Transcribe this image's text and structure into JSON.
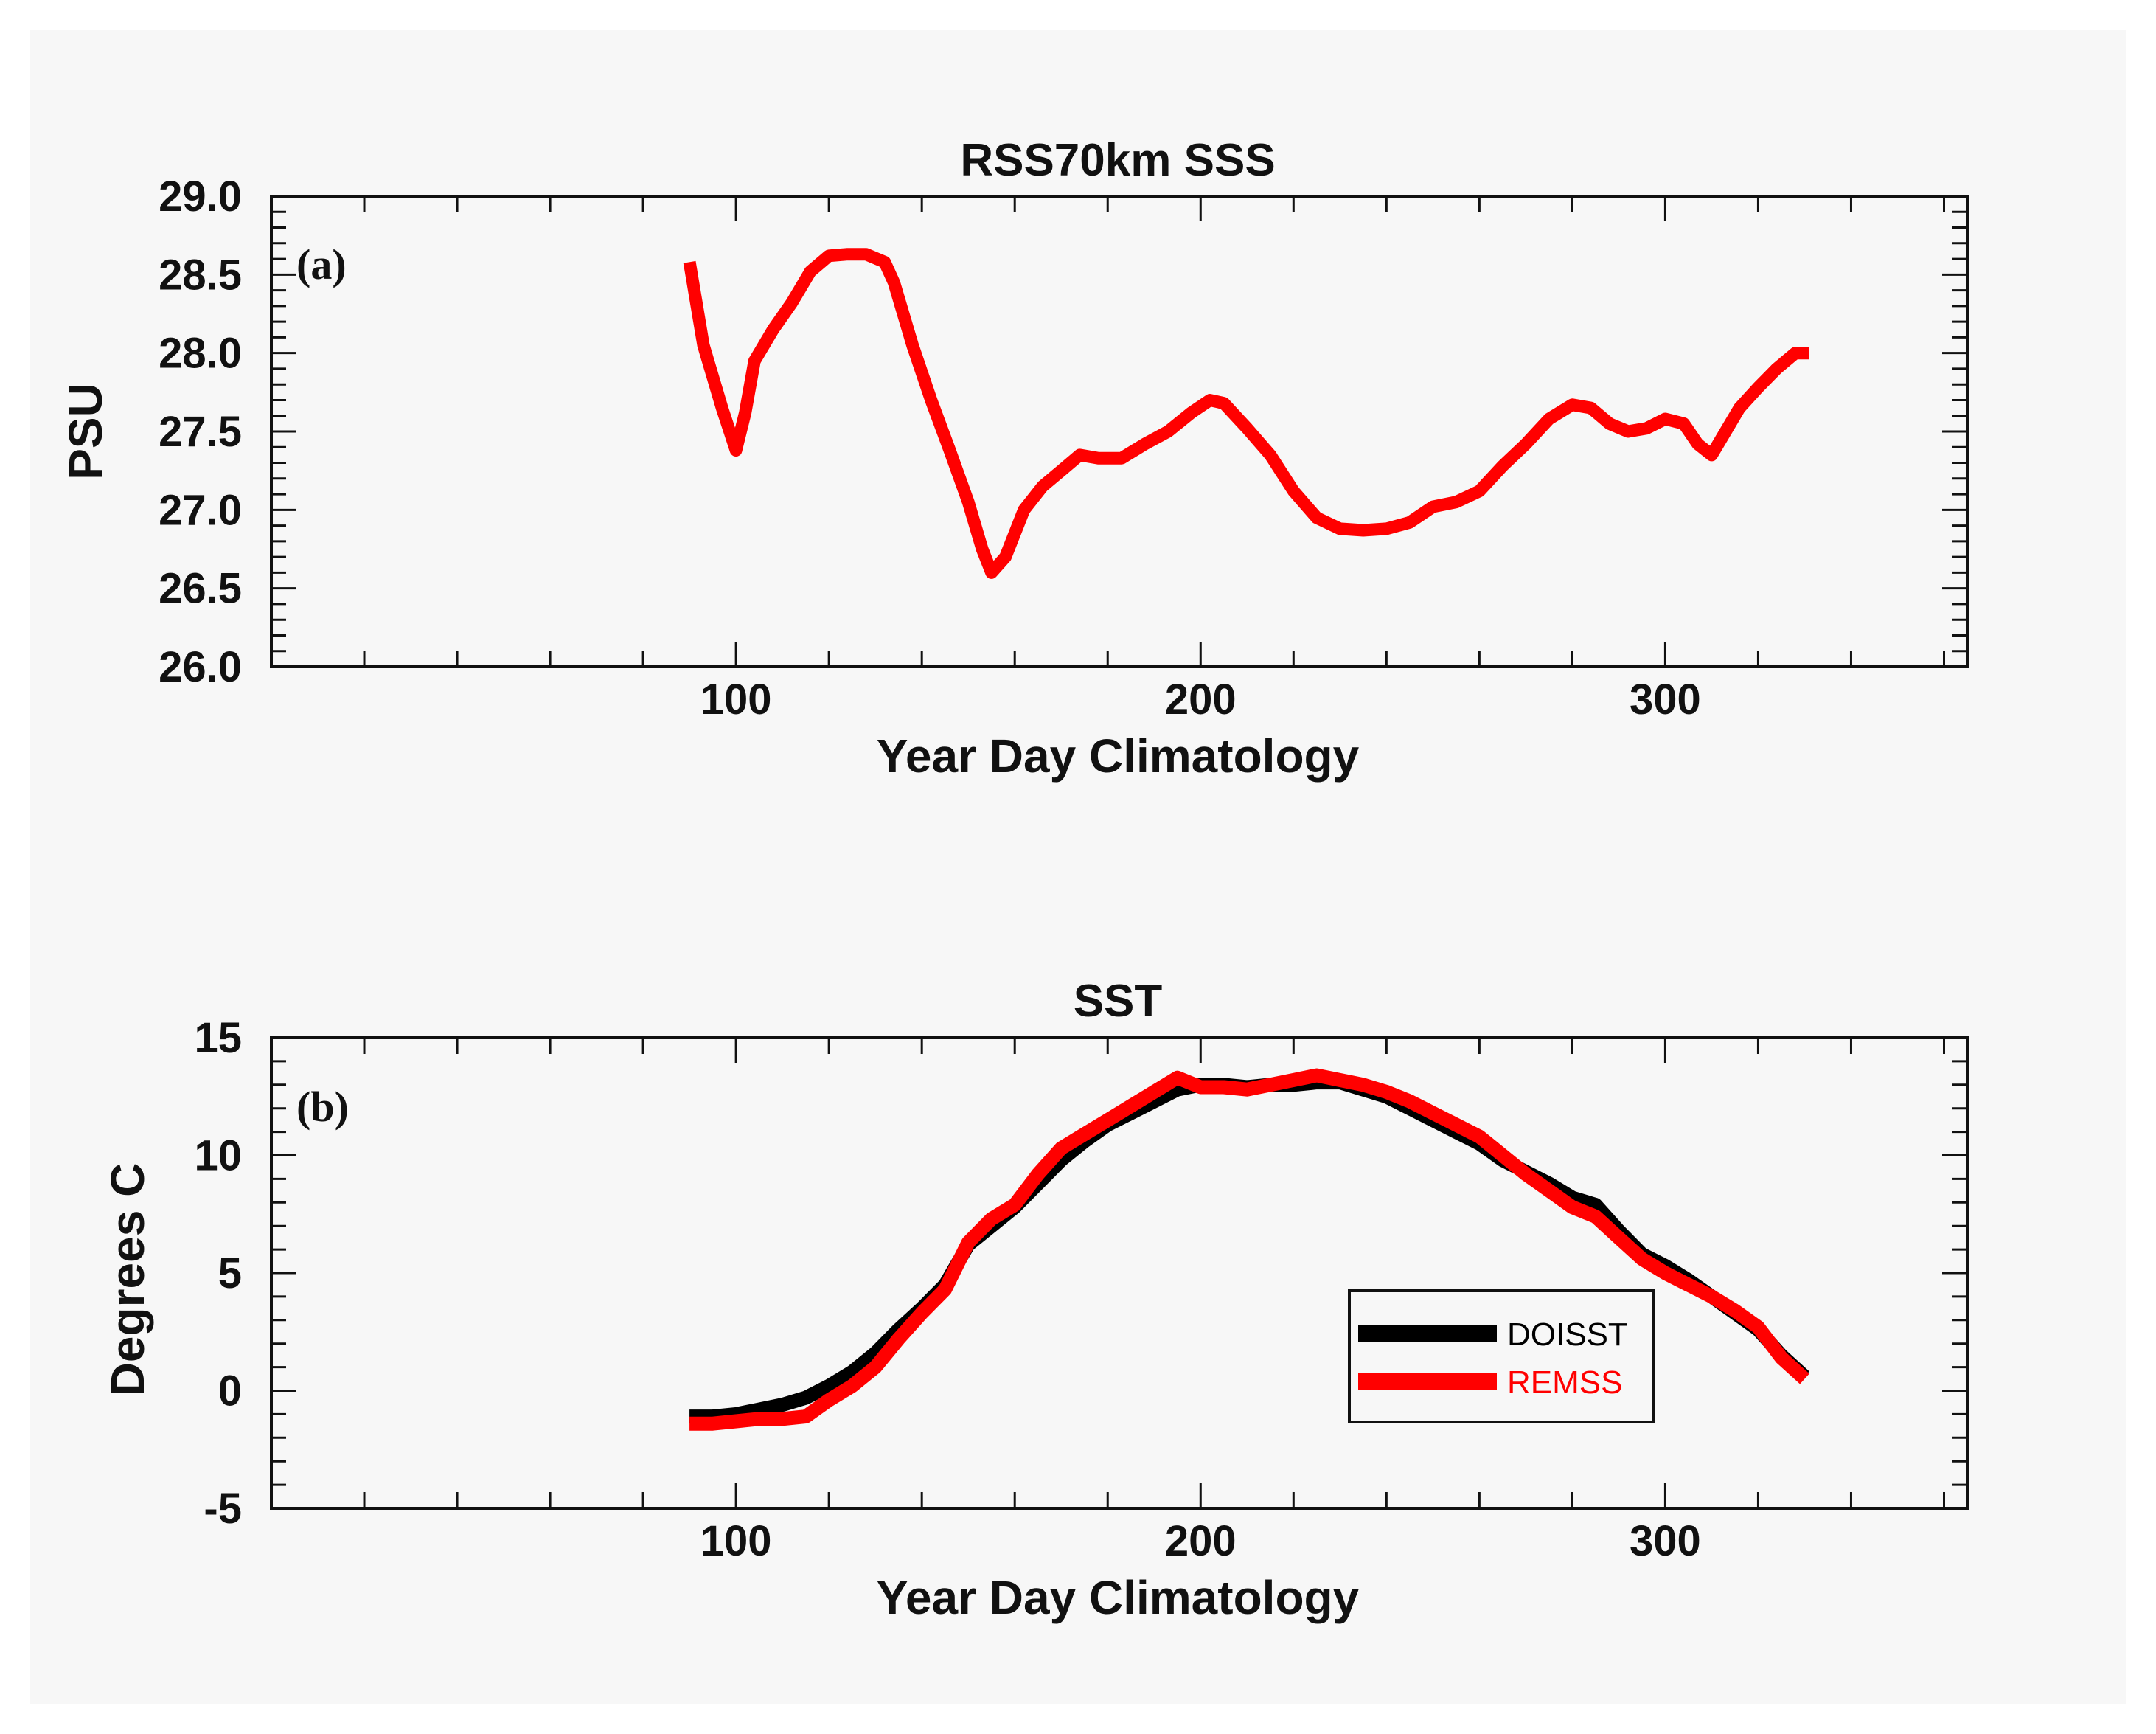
{
  "colors": {
    "doisst": "#000000",
    "remss": "#ff0000",
    "axis": "#111111"
  },
  "chart_data": [
    {
      "type": "line",
      "panel_label": "(a)",
      "title": "RSS70km SSS",
      "xlabel": "Year Day Climatology",
      "ylabel": "PSU",
      "xlim": [
        0,
        365
      ],
      "ylim": [
        26.0,
        29.0
      ],
      "xticks": [
        100,
        200,
        300
      ],
      "xtick_labels": [
        "100",
        "200",
        "300"
      ],
      "yticks": [
        26.0,
        26.5,
        27.0,
        27.5,
        28.0,
        28.5,
        29.0
      ],
      "ytick_labels": [
        "26.0",
        "26.5",
        "27.0",
        "27.5",
        "28.0",
        "28.5",
        "29.0"
      ],
      "grid": false,
      "series": [
        {
          "name": "RSS70km SSS",
          "color": "#ff0000",
          "x": [
            90,
            93,
            97,
            100,
            102,
            104,
            108,
            112,
            116,
            120,
            124,
            128,
            132,
            134,
            138,
            142,
            146,
            150,
            153,
            155,
            158,
            162,
            166,
            170,
            174,
            178,
            183,
            188,
            193,
            198,
            202,
            205,
            210,
            215,
            220,
            225,
            230,
            235,
            240,
            245,
            250,
            255,
            260,
            265,
            270,
            275,
            280,
            284,
            288,
            292,
            296,
            300,
            304,
            307,
            310,
            313,
            316,
            320,
            324,
            328,
            331
          ],
          "y": [
            28.58,
            28.05,
            27.65,
            27.38,
            27.62,
            27.95,
            28.15,
            28.32,
            28.52,
            28.62,
            28.63,
            28.63,
            28.58,
            28.45,
            28.05,
            27.7,
            27.38,
            27.05,
            26.75,
            26.6,
            26.7,
            27.0,
            27.15,
            27.25,
            27.35,
            27.33,
            27.33,
            27.42,
            27.5,
            27.62,
            27.7,
            27.68,
            27.52,
            27.35,
            27.12,
            26.95,
            26.88,
            26.87,
            26.88,
            26.92,
            27.02,
            27.05,
            27.12,
            27.28,
            27.42,
            27.58,
            27.67,
            27.65,
            27.55,
            27.5,
            27.52,
            27.58,
            27.55,
            27.42,
            27.35,
            27.5,
            27.65,
            27.78,
            27.9,
            28.0,
            28.0
          ]
        }
      ]
    },
    {
      "type": "line",
      "panel_label": "(b)",
      "title": "SST",
      "xlabel": "Year Day Climatology",
      "ylabel": "Degrees C",
      "xlim": [
        0,
        365
      ],
      "ylim": [
        -5,
        15
      ],
      "xticks": [
        100,
        200,
        300
      ],
      "xtick_labels": [
        "100",
        "200",
        "300"
      ],
      "yticks": [
        -5,
        0,
        5,
        10,
        15
      ],
      "ytick_labels": [
        "-5",
        "0",
        "5",
        "10",
        "15"
      ],
      "grid": false,
      "legend": {
        "position": "lower-right",
        "entries": [
          {
            "label": "DOISST",
            "color": "#000000"
          },
          {
            "label": "REMSS",
            "color": "#ff0000"
          }
        ]
      },
      "series": [
        {
          "name": "DOISST",
          "color": "#000000",
          "x": [
            90,
            95,
            100,
            105,
            110,
            115,
            120,
            125,
            130,
            135,
            140,
            145,
            150,
            155,
            160,
            165,
            170,
            175,
            180,
            185,
            190,
            195,
            200,
            205,
            210,
            215,
            220,
            225,
            230,
            235,
            240,
            245,
            250,
            255,
            260,
            265,
            270,
            275,
            280,
            285,
            290,
            295,
            300,
            305,
            310,
            315,
            320,
            325,
            330
          ],
          "y": [
            -1.1,
            -1.1,
            -1.0,
            -0.8,
            -0.6,
            -0.3,
            0.2,
            0.8,
            1.6,
            2.6,
            3.5,
            4.5,
            6.2,
            7.0,
            7.8,
            8.8,
            9.8,
            10.6,
            11.3,
            11.8,
            12.3,
            12.8,
            13.0,
            13.0,
            12.9,
            13.0,
            13.0,
            13.1,
            13.1,
            12.8,
            12.5,
            12.0,
            11.5,
            11.0,
            10.5,
            9.8,
            9.3,
            8.8,
            8.2,
            7.9,
            6.8,
            5.8,
            5.3,
            4.7,
            4.0,
            3.3,
            2.6,
            1.5,
            0.6
          ]
        },
        {
          "name": "REMSS",
          "color": "#ff0000",
          "x": [
            90,
            95,
            100,
            105,
            110,
            115,
            120,
            125,
            130,
            135,
            140,
            145,
            150,
            155,
            160,
            165,
            170,
            175,
            180,
            185,
            190,
            195,
            200,
            205,
            210,
            215,
            220,
            225,
            230,
            235,
            240,
            245,
            250,
            255,
            260,
            265,
            270,
            275,
            280,
            285,
            290,
            295,
            300,
            305,
            310,
            315,
            320,
            325,
            330
          ],
          "y": [
            -1.4,
            -1.4,
            -1.3,
            -1.2,
            -1.2,
            -1.1,
            -0.4,
            0.2,
            1.0,
            2.2,
            3.3,
            4.3,
            6.3,
            7.3,
            7.9,
            9.2,
            10.3,
            10.9,
            11.5,
            12.1,
            12.7,
            13.3,
            12.9,
            12.9,
            12.8,
            13.0,
            13.2,
            13.4,
            13.2,
            13.0,
            12.7,
            12.3,
            11.8,
            11.3,
            10.8,
            10.0,
            9.2,
            8.5,
            7.8,
            7.4,
            6.5,
            5.6,
            5.0,
            4.5,
            4.0,
            3.4,
            2.7,
            1.4,
            0.5
          ]
        }
      ]
    }
  ]
}
